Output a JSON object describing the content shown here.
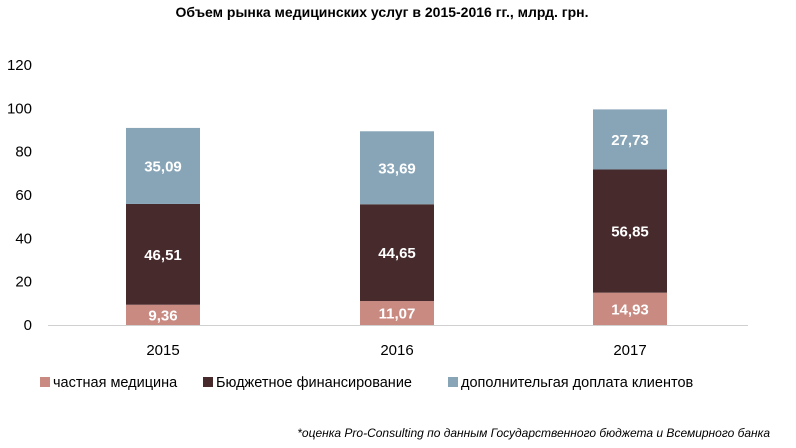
{
  "chart_data": {
    "type": "bar",
    "stacked": true,
    "title": "Объем рынка медицинских услуг в 2015-2016 гг., млрд. грн.",
    "xlabel": "",
    "ylabel": "",
    "categories": [
      "2015",
      "2016",
      "2017"
    ],
    "ylim": [
      0,
      120
    ],
    "yticks": [
      0,
      20,
      40,
      60,
      80,
      100,
      120
    ],
    "grid": false,
    "legend_position": "bottom",
    "series": [
      {
        "name": "частная медицина",
        "values": [
          9.36,
          11.07,
          14.93
        ],
        "labels": [
          "9,36",
          "11,07",
          "14,93"
        ],
        "color": "#c98a82"
      },
      {
        "name": "Бюджетное финансирование",
        "values": [
          46.51,
          44.65,
          56.85
        ],
        "labels": [
          "46,51",
          "44,65",
          "56,85"
        ],
        "color": "#472a2c"
      },
      {
        "name": "дополнительгая доплата клиентов",
        "values": [
          35.09,
          33.69,
          27.73
        ],
        "labels": [
          "35,09",
          "33,69",
          "27,73"
        ],
        "color": "#88a5b7"
      }
    ],
    "footnote": "*оценка Pro-Consulting по данным Государственного бюджета и Всемирного банка"
  }
}
